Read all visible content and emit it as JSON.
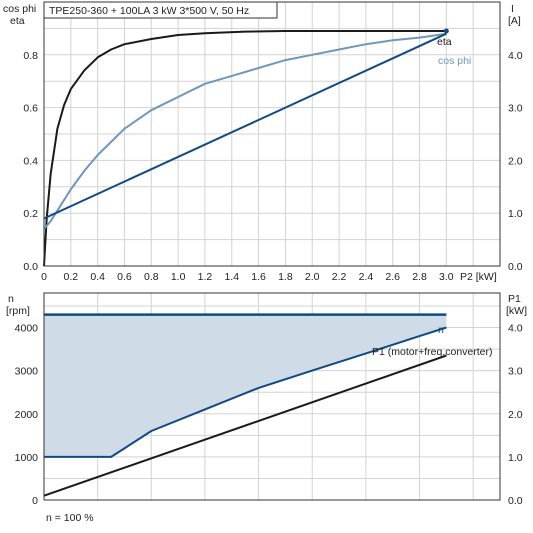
{
  "title": "TPE250-360 + 100LA    3 kW   3*500 V, 50 Hz",
  "colors": {
    "dark": "#1a1a1a",
    "blue": "#0f4a82",
    "light_blue": "#6e97bd",
    "fill": "#cfdce8",
    "grid": "#d3d3d3"
  },
  "chart_data": [
    {
      "type": "line",
      "panel": "top",
      "title": "TPE250-360 + 100LA    3 kW   3*500 V, 50 Hz",
      "x_ticks": [
        "0",
        "0.2",
        "0.4",
        "0.6",
        "0.8",
        "1.0",
        "1.2",
        "1.4",
        "1.6",
        "1.8",
        "2.0",
        "2.2",
        "2.4",
        "2.6",
        "2.8",
        "3.0"
      ],
      "x_unit_label": "P2 [kW]",
      "xlim": [
        0,
        3.4
      ],
      "y_left_label": [
        "cos phi",
        "eta"
      ],
      "y_left_ticks": [
        "0.0",
        "0.2",
        "0.4",
        "0.6",
        "0.8"
      ],
      "ylim_left": [
        0,
        1.0
      ],
      "y_right_label": [
        "I",
        "[A]"
      ],
      "y_right_ticks": [
        "0.0",
        "1.0",
        "2.0",
        "3.0",
        "4.0"
      ],
      "ylim_right": [
        0,
        5.0
      ],
      "grid": true,
      "series": [
        {
          "name": "eta",
          "axis": "left",
          "color": "#1a1a1a",
          "x": [
            0,
            0.02,
            0.05,
            0.1,
            0.15,
            0.2,
            0.3,
            0.4,
            0.5,
            0.6,
            0.8,
            1.0,
            1.2,
            1.5,
            1.8,
            2.0,
            2.5,
            3.0
          ],
          "y": [
            0,
            0.18,
            0.35,
            0.52,
            0.61,
            0.67,
            0.74,
            0.79,
            0.82,
            0.84,
            0.86,
            0.875,
            0.882,
            0.888,
            0.89,
            0.89,
            0.89,
            0.89
          ]
        },
        {
          "name": "cos phi",
          "axis": "left",
          "color": "#6e97bd",
          "x": [
            0,
            0.05,
            0.1,
            0.2,
            0.3,
            0.4,
            0.5,
            0.6,
            0.8,
            1.0,
            1.2,
            1.4,
            1.6,
            1.8,
            2.0,
            2.2,
            2.4,
            2.6,
            2.8,
            3.0
          ],
          "y": [
            0.14,
            0.17,
            0.21,
            0.29,
            0.36,
            0.42,
            0.47,
            0.52,
            0.59,
            0.64,
            0.69,
            0.72,
            0.75,
            0.78,
            0.8,
            0.82,
            0.84,
            0.855,
            0.865,
            0.88
          ]
        },
        {
          "name": "I",
          "axis": "right",
          "color": "#0f4a82",
          "x": [
            0,
            3.0
          ],
          "y": [
            0.9,
            4.4
          ]
        }
      ]
    },
    {
      "type": "line",
      "panel": "bottom",
      "xlim": [
        0,
        3.4
      ],
      "y_left_label": [
        "n",
        "[rpm]"
      ],
      "y_left_ticks": [
        "0",
        "1000",
        "2000",
        "3000",
        "4000"
      ],
      "ylim_left": [
        0,
        4800
      ],
      "y_right_label": [
        "P1",
        "[kW]"
      ],
      "y_right_ticks": [
        "0.0",
        "1.0",
        "2.0",
        "3.0",
        "4.0"
      ],
      "ylim_right": [
        0,
        4.8
      ],
      "grid": true,
      "footnote": "n = 100 %",
      "series": [
        {
          "name": "n",
          "axis": "left",
          "color": "#0f4a82",
          "x": [
            0,
            3.0
          ],
          "y": [
            4300,
            4300
          ]
        },
        {
          "name": "",
          "axis": "left",
          "color": "#0f4a82",
          "x": [
            0,
            0.5,
            0.8,
            1.2,
            1.6,
            2.0,
            2.4,
            2.8,
            3.0
          ],
          "y": [
            1000,
            1000,
            1600,
            2100,
            2600,
            3000,
            3400,
            3800,
            4000
          ]
        },
        {
          "name": "P1 (motor+freq.converter)",
          "axis": "right",
          "color": "#1a1a1a",
          "x": [
            0,
            3.0
          ],
          "y": [
            0.1,
            3.35
          ]
        }
      ]
    }
  ]
}
